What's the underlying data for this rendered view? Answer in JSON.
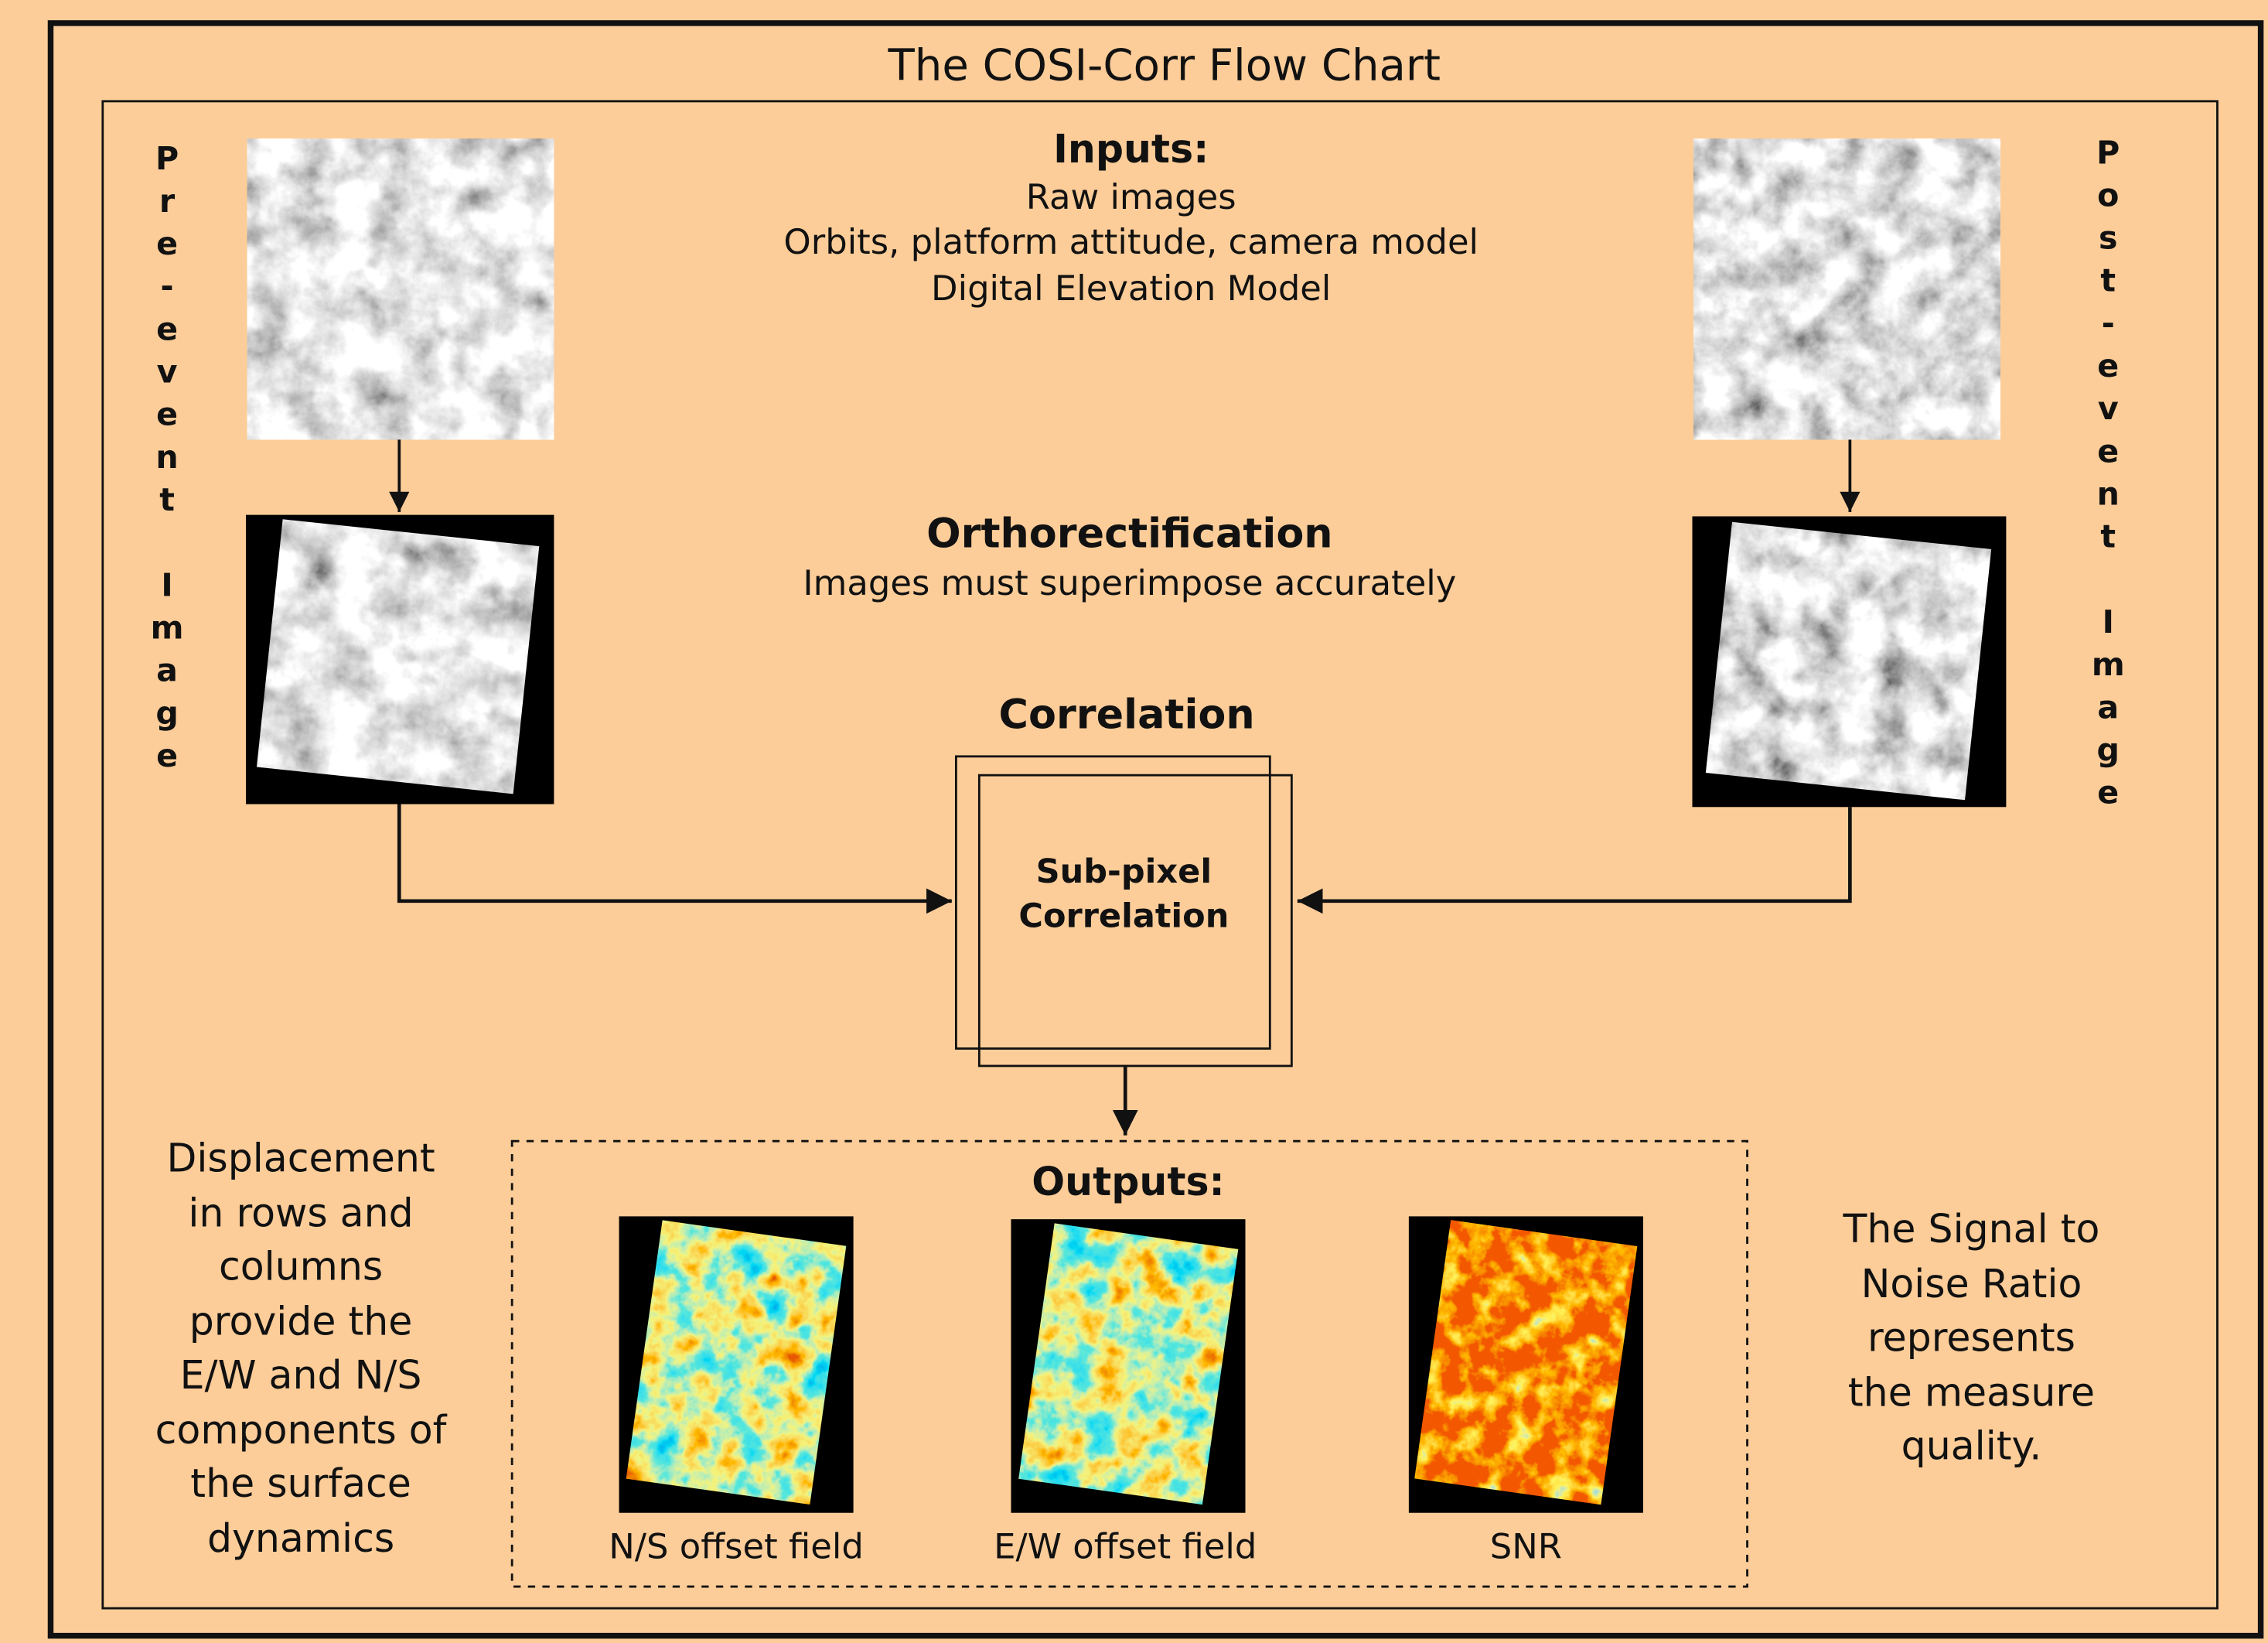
{
  "title": "The COSI-Corr Flow Chart",
  "inputs": {
    "heading": "Inputs:",
    "lines": [
      "Raw images",
      "Orbits, platform attitude, camera model",
      "Digital Elevation Model"
    ]
  },
  "orthorectification": {
    "heading": "Orthorectification",
    "text": "Images must superimpose accurately"
  },
  "correlation": {
    "heading": "Correlation",
    "box_lines": [
      "Sub-pixel",
      "Correlation"
    ]
  },
  "outputs": {
    "heading": "Outputs:",
    "captions": [
      "N/S offset field",
      "E/W offset field",
      "SNR"
    ]
  },
  "side_labels": {
    "pre": "Pre-event Image",
    "post": "Post-event Image"
  },
  "left_note": [
    "Displacement",
    "in rows and",
    "columns",
    "provide the",
    "E/W and N/S",
    "components of",
    "the surface",
    "dynamics"
  ],
  "right_note": [
    "The Signal to",
    "Noise Ratio",
    "represents",
    "the measure",
    "quality."
  ]
}
